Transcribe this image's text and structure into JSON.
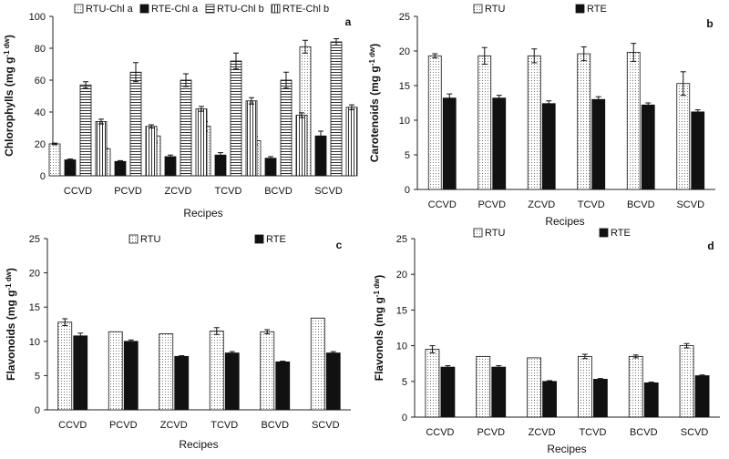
{
  "chart_data": [
    {
      "panel": "a",
      "type": "bar",
      "categories": [
        "CCVD",
        "PCVD",
        "ZCVD",
        "TCVD",
        "BCVD",
        "SCVD"
      ],
      "ylabel": "Chlorophylls (mg g⁻¹ dw)",
      "xlabel": "Recipes",
      "ylim": [
        0,
        100
      ],
      "ytick_step": 20,
      "legend_position": "top",
      "series": [
        {
          "name": "RTU-Chl a",
          "fill": "dots",
          "values": [
            20,
            17,
            25,
            31,
            22,
            81
          ],
          "errors": [
            0.5,
            0.5,
            4,
            3,
            2.5,
            4
          ]
        },
        {
          "name": "RTE-Chl a",
          "fill": "solid",
          "values": [
            10,
            9,
            12,
            13,
            11,
            25
          ],
          "errors": [
            0.5,
            0.5,
            1,
            1.5,
            1,
            3
          ]
        },
        {
          "name": "RTU-Chl b",
          "fill": "hlines",
          "values": [
            57,
            65,
            60,
            72,
            60,
            84
          ],
          "errors": [
            2,
            6,
            4,
            5,
            5,
            2
          ]
        },
        {
          "name": "RTE-Chl b",
          "fill": "vlines",
          "values": [
            34,
            31,
            42,
            47,
            38,
            43
          ],
          "errors": [
            1.5,
            1,
            1.5,
            2,
            1.5,
            1.5
          ]
        }
      ]
    },
    {
      "panel": "b",
      "type": "bar",
      "categories": [
        "CCVD",
        "PCVD",
        "ZCVD",
        "TCVD",
        "BCVD",
        "SCVD"
      ],
      "ylabel": "Carotenoids (mg g⁻¹ dw)",
      "xlabel": "Recipes",
      "ylim": [
        0,
        25
      ],
      "ytick_step": 5,
      "legend_position": "top",
      "series": [
        {
          "name": "RTU",
          "fill": "dots",
          "values": [
            19.3,
            19.3,
            19.3,
            19.6,
            19.8,
            15.3
          ],
          "errors": [
            0.3,
            1.2,
            1.0,
            1.0,
            1.3,
            1.7
          ]
        },
        {
          "name": "RTE",
          "fill": "solid",
          "values": [
            13.2,
            13.2,
            12.4,
            13.0,
            12.2,
            11.2
          ],
          "errors": [
            0.6,
            0.4,
            0.4,
            0.4,
            0.3,
            0.3
          ]
        }
      ]
    },
    {
      "panel": "c",
      "type": "bar",
      "categories": [
        "CCVD",
        "PCVD",
        "ZCVD",
        "TCVD",
        "BCVD",
        "SCVD"
      ],
      "ylabel": "Flavonoids (mg g⁻¹ dw)",
      "xlabel": "Recipes",
      "ylim": [
        0,
        25
      ],
      "ytick_step": 5,
      "legend_position": "top",
      "series": [
        {
          "name": "RTU",
          "fill": "dots",
          "values": [
            12.8,
            11.4,
            11.1,
            11.5,
            11.4,
            13.4
          ],
          "errors": [
            0.5,
            0,
            0,
            0.5,
            0.3,
            0
          ]
        },
        {
          "name": "RTE",
          "fill": "solid",
          "values": [
            10.8,
            10.0,
            7.8,
            8.3,
            7.0,
            8.3
          ],
          "errors": [
            0.4,
            0.2,
            0.1,
            0.2,
            0.1,
            0.2
          ]
        }
      ]
    },
    {
      "panel": "d",
      "type": "bar",
      "categories": [
        "CCVD",
        "PCVD",
        "ZCVD",
        "TCVD",
        "BCVD",
        "SCVD"
      ],
      "ylabel": "Flavonols (mg g⁻¹ dw)",
      "xlabel": "Recipes",
      "ylim": [
        0,
        25
      ],
      "ytick_step": 5,
      "legend_position": "top",
      "series": [
        {
          "name": "RTU",
          "fill": "dots",
          "values": [
            9.5,
            8.5,
            8.3,
            8.5,
            8.5,
            10.0
          ],
          "errors": [
            0.5,
            0,
            0,
            0.3,
            0.2,
            0.3
          ]
        },
        {
          "name": "RTE",
          "fill": "solid",
          "values": [
            7.0,
            7.0,
            5.0,
            5.3,
            4.8,
            5.8
          ],
          "errors": [
            0.2,
            0.2,
            0.1,
            0.1,
            0.1,
            0.1
          ]
        }
      ]
    }
  ]
}
